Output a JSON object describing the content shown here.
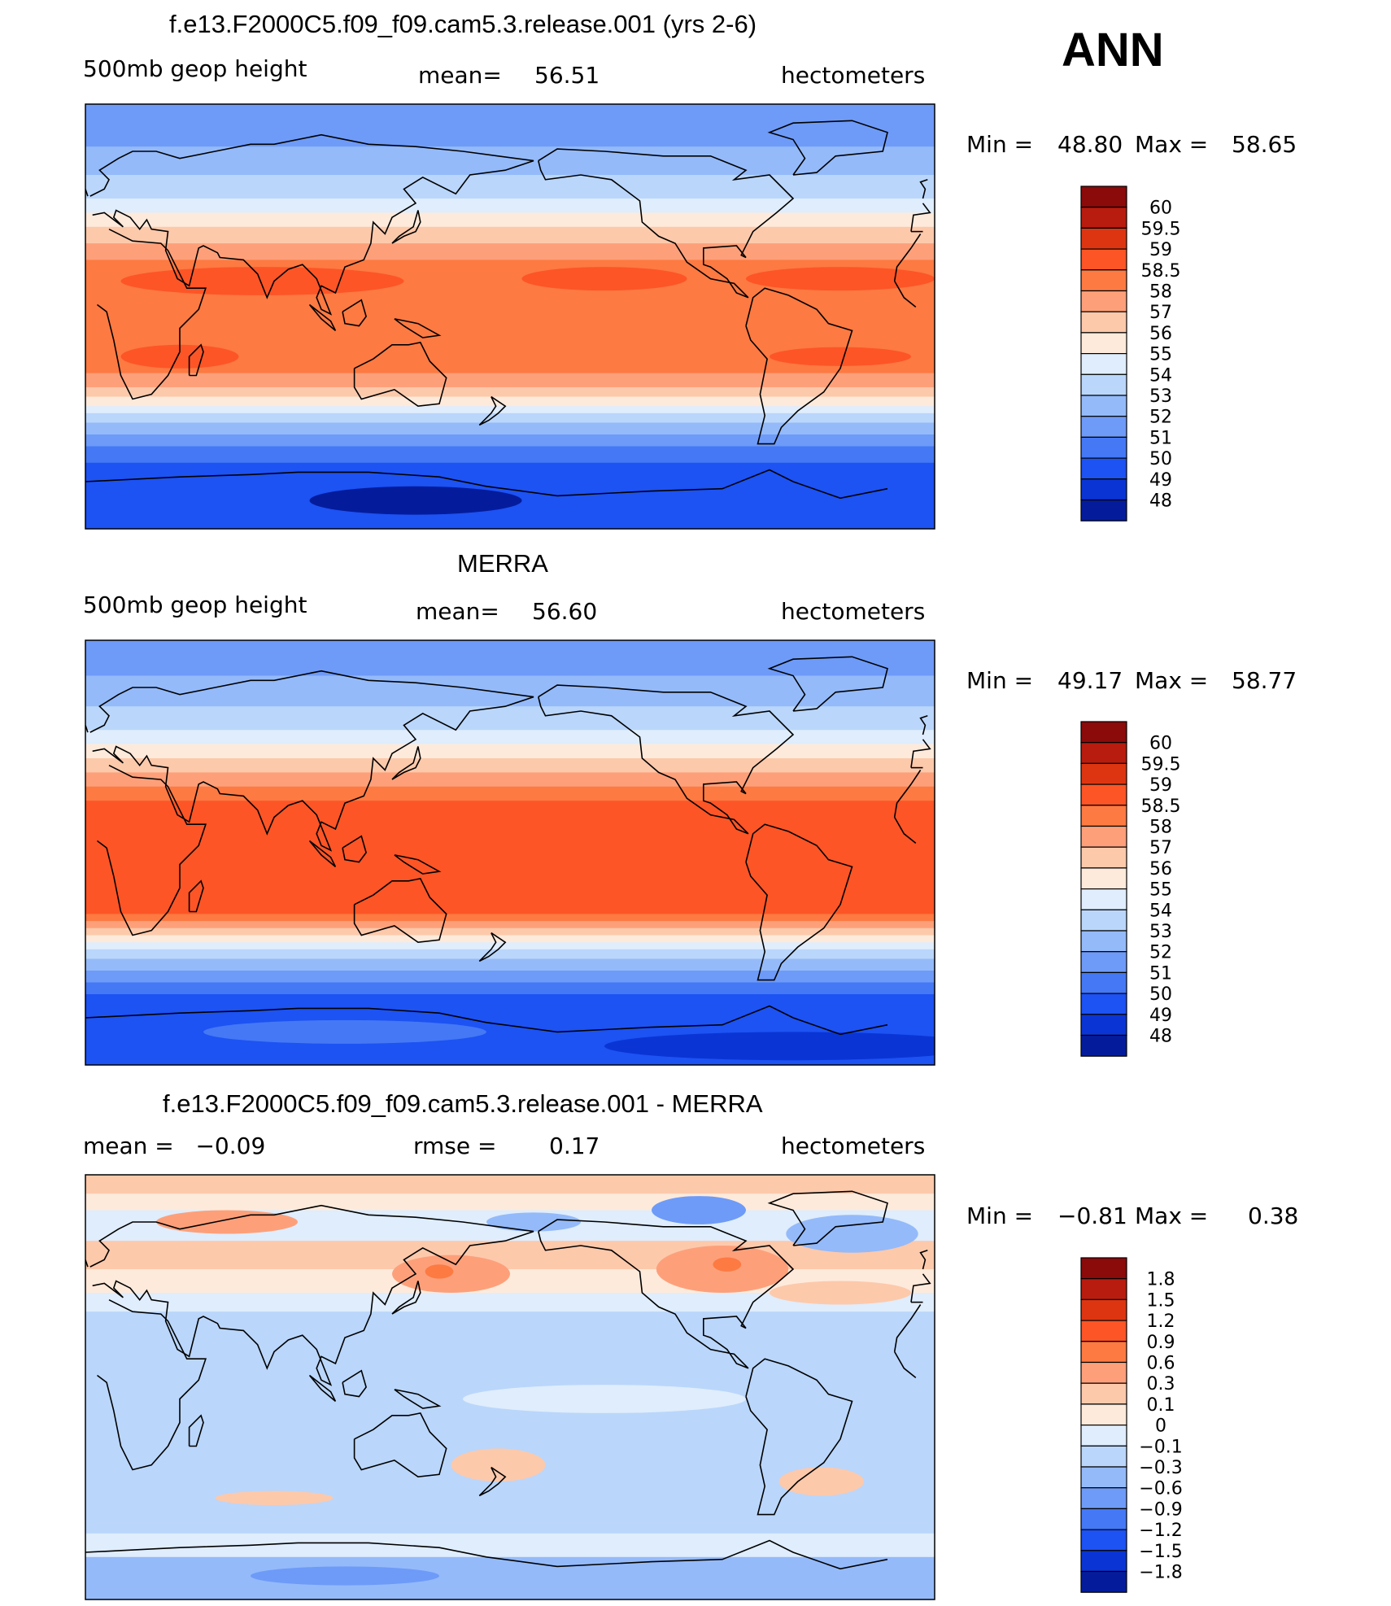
{
  "season": "ANN",
  "chart_data": [
    {
      "type": "heatmap",
      "title": "f.e13.F2000C5.f09_f09.cam5.3.release.001 (yrs 2-6)",
      "variable": "500mb geop height",
      "stat_left": "",
      "mean_label": "mean=",
      "mean_value": "56.51",
      "units": "hectometers",
      "min_label": "Min =",
      "min_value": "48.80",
      "max_label": "Max =",
      "max_value": "58.65",
      "colorbar": {
        "ticks": [
          "60",
          "59.5",
          "59",
          "58.5",
          "58",
          "57",
          "56",
          "55",
          "54",
          "53",
          "52",
          "51",
          "50",
          "49",
          "48"
        ],
        "colors": [
          "#8b0a0a",
          "#b81c0e",
          "#dd3511",
          "#fd5526",
          "#fd7a42",
          "#fda07a",
          "#fdc9ab",
          "#feeadb",
          "#dfedfc",
          "#bad6fb",
          "#94bafa",
          "#6e9bf8",
          "#4478f5",
          "#1d52f3",
          "#0a35d4",
          "#041c9c"
        ]
      },
      "field_bands": [
        {
          "lat": 90,
          "color": "#6e9bf8"
        },
        {
          "lat": 72,
          "color": "#94bafa"
        },
        {
          "lat": 60,
          "color": "#bad6fb"
        },
        {
          "lat": 50,
          "color": "#dfedfc"
        },
        {
          "lat": 44,
          "color": "#feeadb"
        },
        {
          "lat": 38,
          "color": "#fdc9ab"
        },
        {
          "lat": 31,
          "color": "#fda07a"
        },
        {
          "lat": 24,
          "color": "#fd7a42"
        },
        {
          "lat": -15,
          "color": "#fd7a42"
        },
        {
          "lat": -24,
          "color": "#fda07a"
        },
        {
          "lat": -30,
          "color": "#fdc9ab"
        },
        {
          "lat": -34,
          "color": "#feeadb"
        },
        {
          "lat": -38,
          "color": "#dfedfc"
        },
        {
          "lat": -41,
          "color": "#bad6fb"
        },
        {
          "lat": -45,
          "color": "#94bafa"
        },
        {
          "lat": -50,
          "color": "#6e9bf8"
        },
        {
          "lat": -55,
          "color": "#4478f5"
        },
        {
          "lat": -62,
          "color": "#1d52f3"
        },
        {
          "lat": -90,
          "color": "#0a35d4"
        }
      ],
      "field_blobs": [
        {
          "lon": 75,
          "lat": 15,
          "rx": 60,
          "ry": 6,
          "color": "#fd5526"
        },
        {
          "lon": 220,
          "lat": 16,
          "rx": 35,
          "ry": 5,
          "color": "#fd5526"
        },
        {
          "lon": 320,
          "lat": 16,
          "rx": 40,
          "ry": 5,
          "color": "#fd5526"
        },
        {
          "lon": 40,
          "lat": -17,
          "rx": 25,
          "ry": 5,
          "color": "#fd5526"
        },
        {
          "lon": 320,
          "lat": -17,
          "rx": 30,
          "ry": 4,
          "color": "#fd5526"
        },
        {
          "lon": 140,
          "lat": -78,
          "rx": 45,
          "ry": 6,
          "color": "#041c9c"
        }
      ]
    },
    {
      "type": "heatmap",
      "title": "MERRA",
      "variable": "500mb geop height",
      "stat_left": "",
      "mean_label": "mean=",
      "mean_value": "56.60",
      "units": "hectometers",
      "min_label": "Min =",
      "min_value": "49.17",
      "max_label": "Max =",
      "max_value": "58.77",
      "colorbar": {
        "ticks": [
          "60",
          "59.5",
          "59",
          "58.5",
          "58",
          "57",
          "56",
          "55",
          "54",
          "53",
          "52",
          "51",
          "50",
          "49",
          "48"
        ],
        "colors": [
          "#8b0a0a",
          "#b81c0e",
          "#dd3511",
          "#fd5526",
          "#fd7a42",
          "#fda07a",
          "#fdc9ab",
          "#feeadb",
          "#dfedfc",
          "#bad6fb",
          "#94bafa",
          "#6e9bf8",
          "#4478f5",
          "#1d52f3",
          "#0a35d4",
          "#041c9c"
        ]
      },
      "field_bands": [
        {
          "lat": 90,
          "color": "#6e9bf8"
        },
        {
          "lat": 75,
          "color": "#94bafa"
        },
        {
          "lat": 62,
          "color": "#bad6fb"
        },
        {
          "lat": 52,
          "color": "#dfedfc"
        },
        {
          "lat": 46,
          "color": "#feeadb"
        },
        {
          "lat": 40,
          "color": "#fdc9ab"
        },
        {
          "lat": 34,
          "color": "#fda07a"
        },
        {
          "lat": 28,
          "color": "#fd7a42"
        },
        {
          "lat": 22,
          "color": "#fd5526"
        },
        {
          "lat": -22,
          "color": "#fd5526"
        },
        {
          "lat": -26,
          "color": "#fd7a42"
        },
        {
          "lat": -29,
          "color": "#fda07a"
        },
        {
          "lat": -32,
          "color": "#fdc9ab"
        },
        {
          "lat": -35,
          "color": "#feeadb"
        },
        {
          "lat": -38,
          "color": "#dfedfc"
        },
        {
          "lat": -41,
          "color": "#bad6fb"
        },
        {
          "lat": -45,
          "color": "#94bafa"
        },
        {
          "lat": -50,
          "color": "#6e9bf8"
        },
        {
          "lat": -55,
          "color": "#4478f5"
        },
        {
          "lat": -60,
          "color": "#1d52f3"
        },
        {
          "lat": -90,
          "color": "#1d52f3"
        }
      ],
      "field_blobs": [
        {
          "lon": 110,
          "lat": -76,
          "rx": 60,
          "ry": 5,
          "color": "#4478f5"
        },
        {
          "lon": 300,
          "lat": -82,
          "rx": 80,
          "ry": 6,
          "color": "#0a35d4"
        }
      ]
    },
    {
      "type": "heatmap",
      "title": "f.e13.F2000C5.f09_f09.cam5.3.release.001 - MERRA",
      "variable": "",
      "stat_left": "mean =   −0.09",
      "mean_label": "rmse =",
      "mean_value": "0.17",
      "units": "hectometers",
      "min_label": "Min =",
      "min_value": "−0.81",
      "max_label": "Max =",
      "max_value": "0.38",
      "colorbar": {
        "ticks": [
          "1.8",
          "1.5",
          "1.2",
          "0.9",
          "0.6",
          "0.3",
          "0.1",
          "0",
          "−0.1",
          "−0.3",
          "−0.6",
          "−0.9",
          "−1.2",
          "−1.5",
          "−1.8"
        ],
        "colors": [
          "#8b0a0a",
          "#b81c0e",
          "#dd3511",
          "#fd5526",
          "#fd7a42",
          "#fda07a",
          "#fdc9ab",
          "#feeadb",
          "#dfedfc",
          "#bad6fb",
          "#94bafa",
          "#6e9bf8",
          "#4478f5",
          "#1d52f3",
          "#0a35d4",
          "#041c9c"
        ]
      },
      "field_bands": [
        {
          "lat": 90,
          "color": "#fdc9ab"
        },
        {
          "lat": 82,
          "color": "#feeadb"
        },
        {
          "lat": 75,
          "color": "#dfedfc"
        },
        {
          "lat": 62,
          "color": "#fdc9ab"
        },
        {
          "lat": 50,
          "color": "#feeadb"
        },
        {
          "lat": 40,
          "color": "#dfedfc"
        },
        {
          "lat": 32,
          "color": "#bad6fb"
        },
        {
          "lat": -55,
          "color": "#bad6fb"
        },
        {
          "lat": -62,
          "color": "#dfedfc"
        },
        {
          "lat": -72,
          "color": "#94bafa"
        },
        {
          "lat": -90,
          "color": "#94bafa"
        }
      ],
      "field_blobs": [
        {
          "lon": 60,
          "lat": 70,
          "rx": 30,
          "ry": 5,
          "color": "#fda07a"
        },
        {
          "lon": 155,
          "lat": 48,
          "rx": 25,
          "ry": 8,
          "color": "#fda07a"
        },
        {
          "lon": 150,
          "lat": 49,
          "rx": 6,
          "ry": 3,
          "color": "#fd7a42"
        },
        {
          "lon": 270,
          "lat": 50,
          "rx": 28,
          "ry": 10,
          "color": "#fda07a"
        },
        {
          "lon": 272,
          "lat": 52,
          "rx": 6,
          "ry": 3,
          "color": "#fd7a42"
        },
        {
          "lon": 260,
          "lat": 75,
          "rx": 20,
          "ry": 6,
          "color": "#6e9bf8"
        },
        {
          "lon": 325,
          "lat": 65,
          "rx": 28,
          "ry": 8,
          "color": "#94bafa"
        },
        {
          "lon": 320,
          "lat": 40,
          "rx": 30,
          "ry": 5,
          "color": "#fdc9ab"
        },
        {
          "lon": 190,
          "lat": 70,
          "rx": 20,
          "ry": 4,
          "color": "#94bafa"
        },
        {
          "lon": 175,
          "lat": -33,
          "rx": 20,
          "ry": 7,
          "color": "#fdc9ab"
        },
        {
          "lon": 312,
          "lat": -40,
          "rx": 18,
          "ry": 6,
          "color": "#fdc9ab"
        },
        {
          "lon": 80,
          "lat": -47,
          "rx": 25,
          "ry": 3,
          "color": "#fdc9ab"
        },
        {
          "lon": 220,
          "lat": -5,
          "rx": 60,
          "ry": 6,
          "color": "#dfedfc"
        },
        {
          "lon": 110,
          "lat": -80,
          "rx": 40,
          "ry": 4,
          "color": "#6e9bf8"
        }
      ]
    }
  ]
}
